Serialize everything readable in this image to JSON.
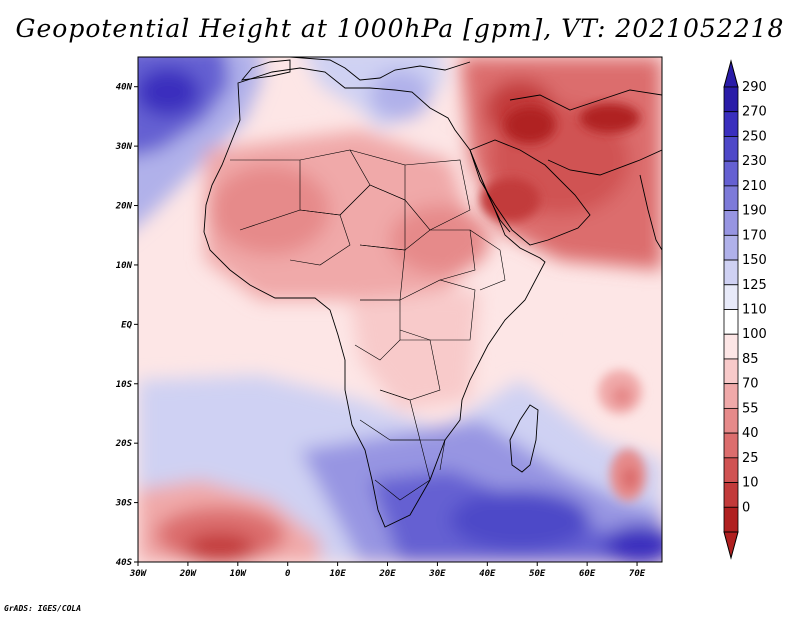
{
  "title": "Geopotential Height at 1000hPa [gpm], VT: 2021052218",
  "credit": "GrADS: IGES/COLA",
  "map": {
    "lon_range": [
      -30,
      75
    ],
    "lat_range": [
      -40,
      45
    ],
    "x_ticks": [
      "30W",
      "20W",
      "10W",
      "0",
      "10E",
      "20E",
      "30E",
      "40E",
      "50E",
      "60E",
      "70E"
    ],
    "y_ticks": [
      "40S",
      "30S",
      "20S",
      "10S",
      "EQ",
      "10N",
      "20N",
      "30N",
      "40N"
    ]
  },
  "colorbar": {
    "labels": [
      "290",
      "270",
      "250",
      "230",
      "210",
      "190",
      "170",
      "150",
      "125",
      "110",
      "100",
      "85",
      "70",
      "55",
      "40",
      "25",
      "10",
      "0"
    ],
    "colors": [
      "#2a1ca8",
      "#3a2fbe",
      "#4e48c8",
      "#6560d2",
      "#7d7ad9",
      "#9795e2",
      "#b0b1ea",
      "#cfd1f3",
      "#e8eaf9",
      "#ffffff",
      "#fde6e6",
      "#f8caca",
      "#f0a9a9",
      "#e68a8a",
      "#dc6d6d",
      "#d05252",
      "#c23a3a",
      "#b02020"
    ]
  },
  "fields": {
    "blue_highs": [
      "South Atlantic-Indian high south of Africa",
      "North Atlantic Azores high",
      "Mediterranean ridge"
    ],
    "red_lows": [
      "Saharan heat low",
      "Arabian heat low",
      "South Atlantic low",
      "Madagascar trough lows"
    ]
  }
}
